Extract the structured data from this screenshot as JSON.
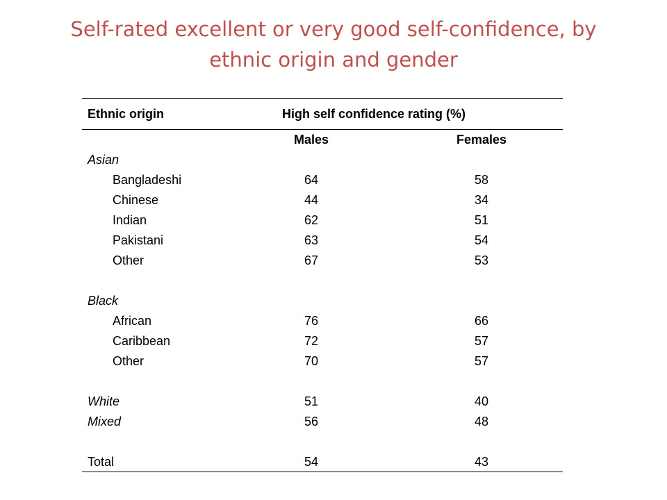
{
  "title": "Self-rated excellent or very good self-confidence, by ethnic origin and gender",
  "table": {
    "header_left": "Ethnic origin",
    "header_right": "High self confidence rating (%)",
    "col_males": "Males",
    "col_females": "Females",
    "rows": [
      {
        "label": "Asian",
        "type": "group",
        "males": "",
        "females": ""
      },
      {
        "label": "Bangladeshi",
        "type": "sub",
        "males": "64",
        "females": "58"
      },
      {
        "label": "Chinese",
        "type": "sub",
        "males": "44",
        "females": "34"
      },
      {
        "label": "Indian",
        "type": "sub",
        "males": "62",
        "females": "51"
      },
      {
        "label": "Pakistani",
        "type": "sub",
        "males": "63",
        "females": "54"
      },
      {
        "label": "Other",
        "type": "sub",
        "males": "67",
        "females": "53"
      },
      {
        "label": "",
        "type": "gap",
        "males": "",
        "females": ""
      },
      {
        "label": "Black",
        "type": "group",
        "males": "",
        "females": ""
      },
      {
        "label": "African",
        "type": "sub",
        "males": "76",
        "females": "66"
      },
      {
        "label": "Caribbean",
        "type": "sub",
        "males": "72",
        "females": "57"
      },
      {
        "label": "Other",
        "type": "sub",
        "males": "70",
        "females": "57"
      },
      {
        "label": "",
        "type": "gap",
        "males": "",
        "females": ""
      },
      {
        "label": "White",
        "type": "group-val",
        "males": "51",
        "females": "40"
      },
      {
        "label": "Mixed",
        "type": "group-val",
        "males": "56",
        "females": "48"
      },
      {
        "label": "",
        "type": "gap",
        "males": "",
        "females": ""
      },
      {
        "label": "Total",
        "type": "total",
        "males": "54",
        "females": "43"
      }
    ]
  }
}
